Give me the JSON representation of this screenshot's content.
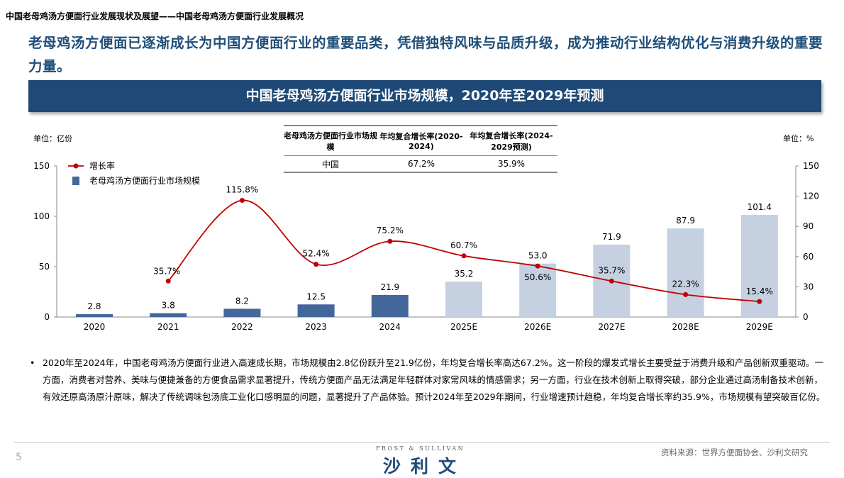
{
  "breadcrumb": "中国老母鸡汤方便面行业发展现状及展望——中国老母鸡汤方便面行业发展概况",
  "headline": "老母鸡汤方便面已逐渐成长为中国方便面行业的重要品类，凭借独特风味与品质升级，成为推动行业结构优化与消费升级的重要力量。",
  "banner_title": "中国老母鸡汤方便面行业市场规模，2020年至2029年预测",
  "unit_left": "单位：亿份",
  "unit_right": "单位：%",
  "cagr_table": {
    "headers": [
      "老母鸡汤方便面行业市场规模",
      "年均复合增长率(2020-2024)",
      "年均复合增长率(2024-2029预测)"
    ],
    "rows": [
      [
        "中国",
        "67.2%",
        "35.9%"
      ]
    ]
  },
  "chart_data": {
    "type": "bar+line",
    "categories": [
      "2020",
      "2021",
      "2022",
      "2023",
      "2024",
      "2025E",
      "2026E",
      "2027E",
      "2028E",
      "2029E"
    ],
    "series": [
      {
        "name": "老母鸡汤方便面行业市场规模",
        "type": "bar",
        "axis": "left",
        "values": [
          2.8,
          3.8,
          8.2,
          12.5,
          21.9,
          35.2,
          53.0,
          71.9,
          87.9,
          101.4
        ],
        "labels": [
          "2.8",
          "3.8",
          "8.2",
          "12.5",
          "21.9",
          "35.2",
          "53.0",
          "71.9",
          "87.9",
          "101.4"
        ]
      },
      {
        "name": "增长率",
        "type": "line",
        "axis": "right",
        "values": [
          null,
          35.7,
          115.8,
          52.4,
          75.2,
          60.7,
          50.6,
          35.7,
          22.3,
          15.4
        ],
        "labels": [
          "",
          "35.7%",
          "115.8%",
          "52.4%",
          "75.2%",
          "60.7%",
          "50.6%",
          "35.7%",
          "22.3%",
          "15.4%"
        ]
      }
    ],
    "left_axis": {
      "range": [
        0,
        150
      ],
      "ticks": [
        0,
        50,
        100,
        150
      ]
    },
    "right_axis": {
      "range": [
        0,
        150
      ],
      "ticks": [
        0,
        30,
        60,
        90,
        120,
        150
      ]
    },
    "legend_position": "top-left",
    "colors": {
      "bar_actual": "#44679b",
      "bar_forecast": "#c5d0e1",
      "line": "#c00000"
    }
  },
  "bullet": "2020年至2024年，中国老母鸡汤方便面行业进入高速成长期，市场规模由2.8亿份跃升至21.9亿份，年均复合增长率高达67.2%。这一阶段的爆发式增长主要受益于消费升级和产品创新双重驱动。一方面，消费者对营养、美味与便捷兼备的方便食品需求显著提升，传统方便面产品无法满足年轻群体对家常风味的情感需求；另一方面，行业在技术创新上取得突破，部分企业通过高汤制备技术创新，有效还原高汤原汁原味，解决了传统调味包汤底工业化口感明显的问题，显著提升了产品体验。预计2024年至2029年期间，行业增速预计趋稳，年均复合增长率约35.9%，市场规模有望突破百亿份。",
  "footer": {
    "page": "5",
    "logo_en": "FROST & SULLIVAN",
    "logo_cn": "沙利文",
    "source": "资料来源：世界方便面协会、沙利文研究"
  }
}
